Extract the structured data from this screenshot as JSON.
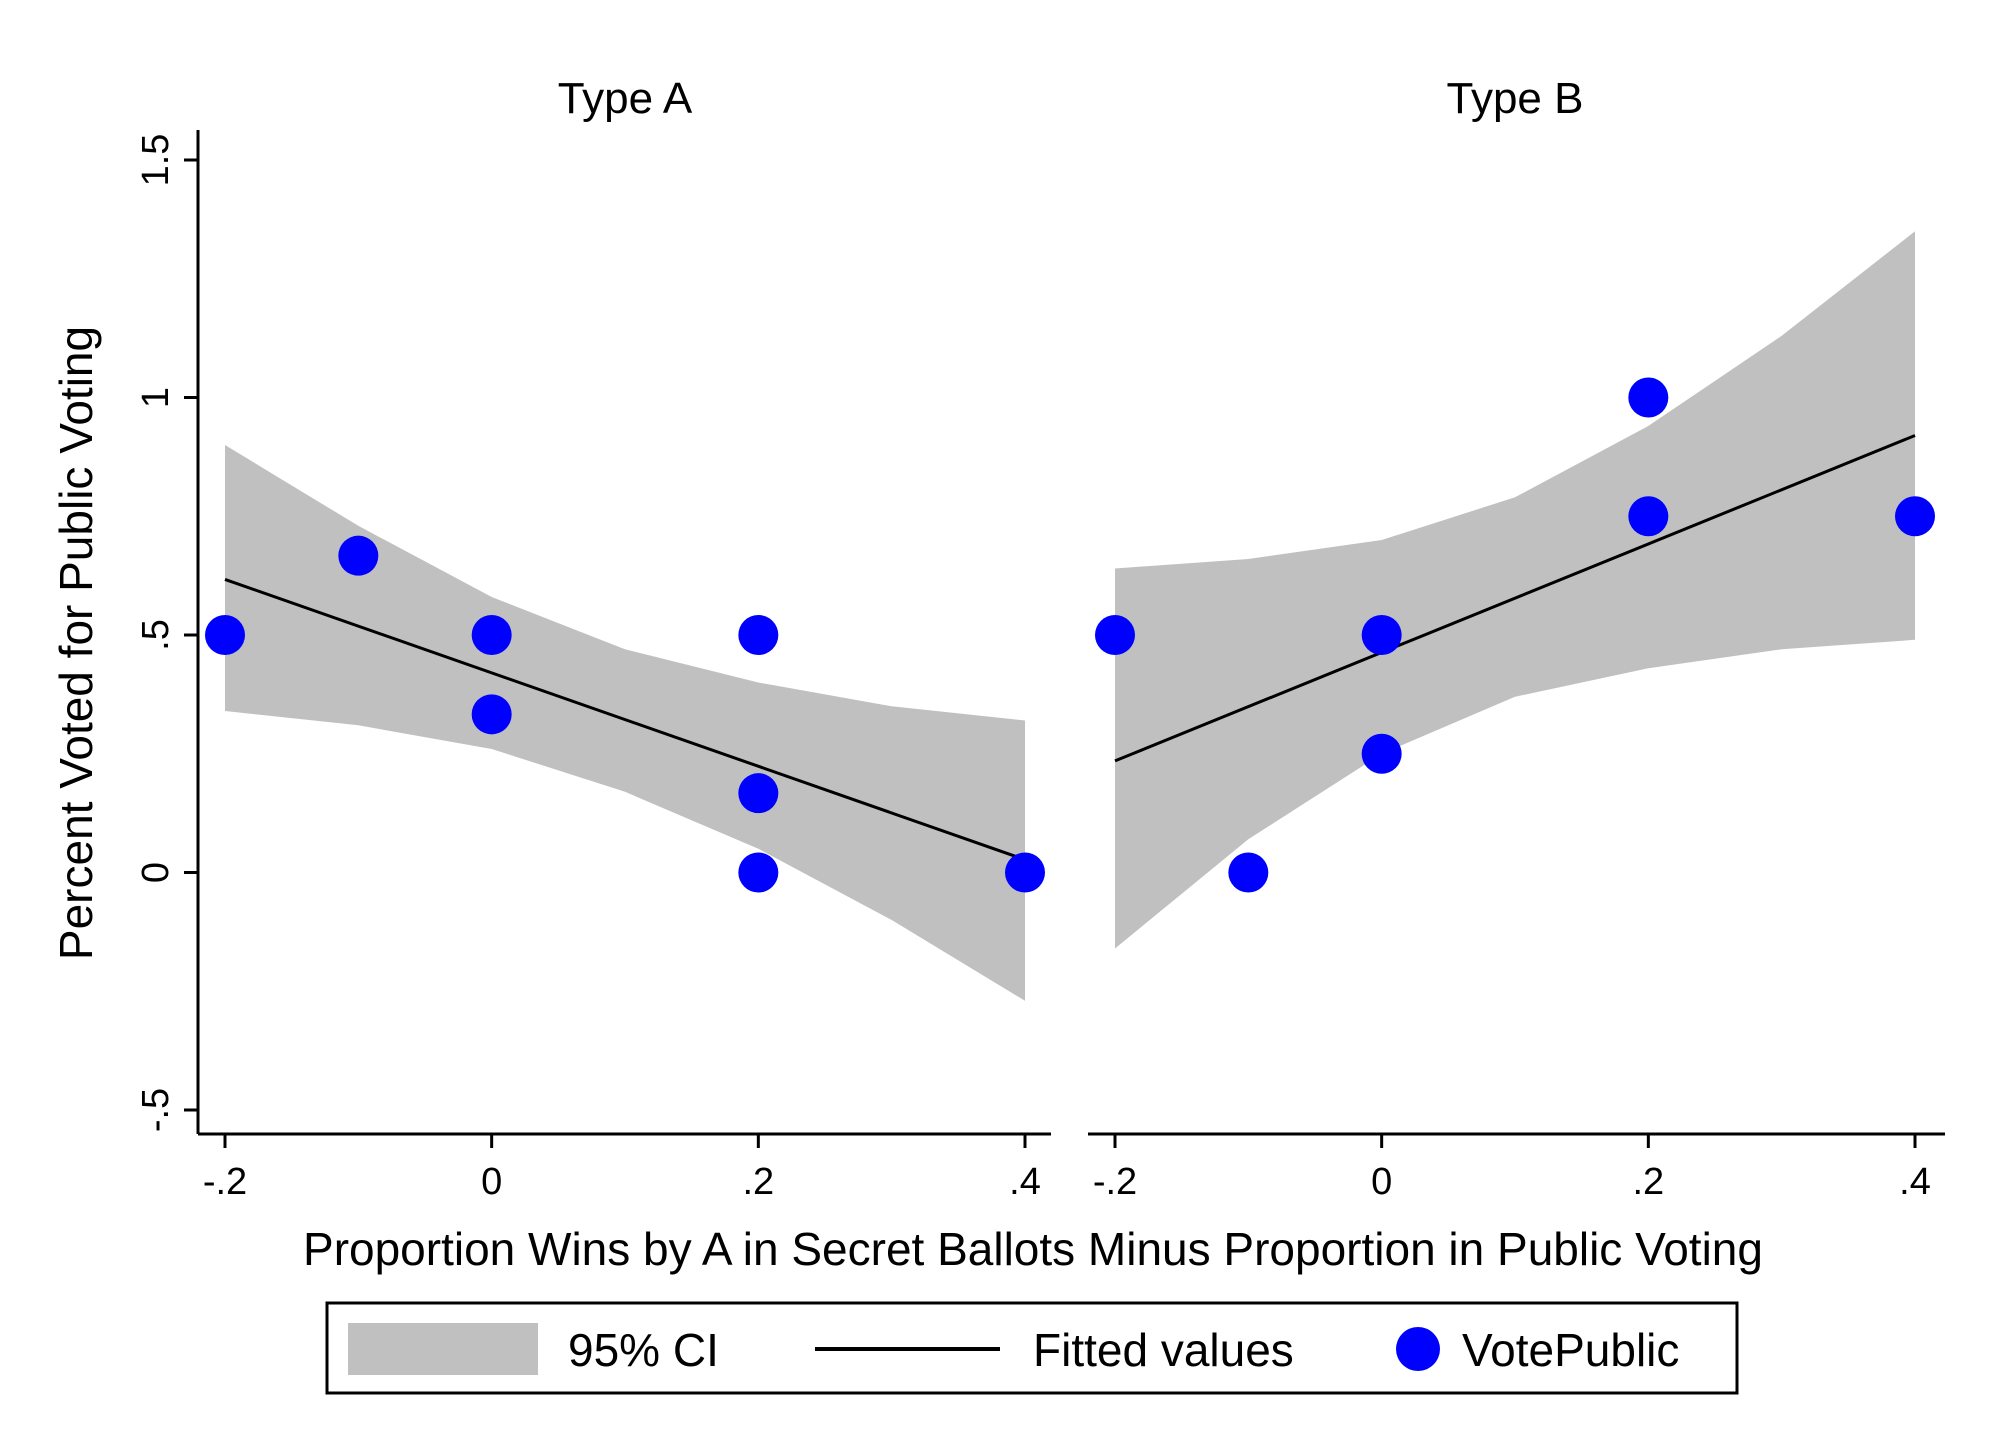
{
  "chart_data": [
    {
      "type": "scatter",
      "title": "Type A",
      "xlabel": "Proportion Wins by A in Secret Ballots Minus Proportion in Public Voting",
      "ylabel": "Percent Voted for Public Voting",
      "xlim": [
        -0.2,
        0.4
      ],
      "ylim": [
        -0.5,
        1.5
      ],
      "xticks": [
        -0.2,
        0,
        0.2,
        0.4
      ],
      "xtick_labels": [
        "-.2",
        "0",
        ".2",
        ".4"
      ],
      "yticks": [
        -0.5,
        0,
        0.5,
        1,
        1.5
      ],
      "ytick_labels": [
        "-.5",
        "0",
        ".5",
        "1",
        "1.5"
      ],
      "grid": false,
      "series": [
        {
          "name": "95% CI",
          "type": "area",
          "color": "#c0c0c0",
          "x": [
            -0.2,
            -0.1,
            0.0,
            0.1,
            0.2,
            0.3,
            0.4
          ],
          "lower": [
            0.34,
            0.31,
            0.26,
            0.17,
            0.05,
            -0.1,
            -0.27
          ],
          "upper": [
            0.9,
            0.73,
            0.58,
            0.47,
            0.4,
            0.35,
            0.32
          ]
        },
        {
          "name": "Fitted values",
          "type": "line",
          "color": "#000000",
          "x": [
            -0.2,
            0.4
          ],
          "y": [
            0.617,
            0.027
          ]
        },
        {
          "name": "VotePublic",
          "type": "scatter",
          "color": "#0000ff",
          "points": [
            {
              "x": -0.2,
              "y": 0.5
            },
            {
              "x": -0.1,
              "y": 0.667
            },
            {
              "x": 0.0,
              "y": 0.5
            },
            {
              "x": 0.0,
              "y": 0.333
            },
            {
              "x": 0.2,
              "y": 0.5
            },
            {
              "x": 0.2,
              "y": 0.167
            },
            {
              "x": 0.2,
              "y": 0.0
            },
            {
              "x": 0.4,
              "y": 0.0
            }
          ]
        }
      ]
    },
    {
      "type": "scatter",
      "title": "Type B",
      "xlabel": "Proportion Wins by A in Secret Ballots Minus Proportion in Public Voting",
      "ylabel": "Percent Voted for Public Voting",
      "xlim": [
        -0.2,
        0.4
      ],
      "ylim": [
        -0.5,
        1.5
      ],
      "xticks": [
        -0.2,
        0,
        0.2,
        0.4
      ],
      "xtick_labels": [
        "-.2",
        "0",
        ".2",
        ".4"
      ],
      "grid": false,
      "series": [
        {
          "name": "95% CI",
          "type": "area",
          "color": "#c0c0c0",
          "x": [
            -0.2,
            -0.1,
            0.0,
            0.1,
            0.2,
            0.3,
            0.4
          ],
          "lower": [
            -0.16,
            0.07,
            0.25,
            0.37,
            0.43,
            0.47,
            0.49
          ],
          "upper": [
            0.64,
            0.66,
            0.7,
            0.79,
            0.94,
            1.13,
            1.35
          ]
        },
        {
          "name": "Fitted values",
          "type": "line",
          "color": "#000000",
          "x": [
            -0.2,
            0.4
          ],
          "y": [
            0.235,
            0.92
          ]
        },
        {
          "name": "VotePublic",
          "type": "scatter",
          "color": "#0000ff",
          "points": [
            {
              "x": -0.2,
              "y": 0.5
            },
            {
              "x": -0.1,
              "y": 0.0
            },
            {
              "x": 0.0,
              "y": 0.5
            },
            {
              "x": 0.0,
              "y": 0.25
            },
            {
              "x": 0.2,
              "y": 1.0
            },
            {
              "x": 0.2,
              "y": 0.75
            },
            {
              "x": 0.4,
              "y": 0.75
            }
          ]
        }
      ]
    }
  ],
  "xlabel": "Proportion Wins by A in Secret Ballots Minus Proportion in Public Voting",
  "ylabel": "Percent Voted for Public Voting",
  "legend": {
    "position": "bottom",
    "items": [
      {
        "label": "95% CI",
        "kind": "area",
        "color": "#c0c0c0"
      },
      {
        "label": "Fitted values",
        "kind": "line",
        "color": "#000000"
      },
      {
        "label": "VotePublic",
        "kind": "marker",
        "color": "#0000ff"
      }
    ]
  }
}
